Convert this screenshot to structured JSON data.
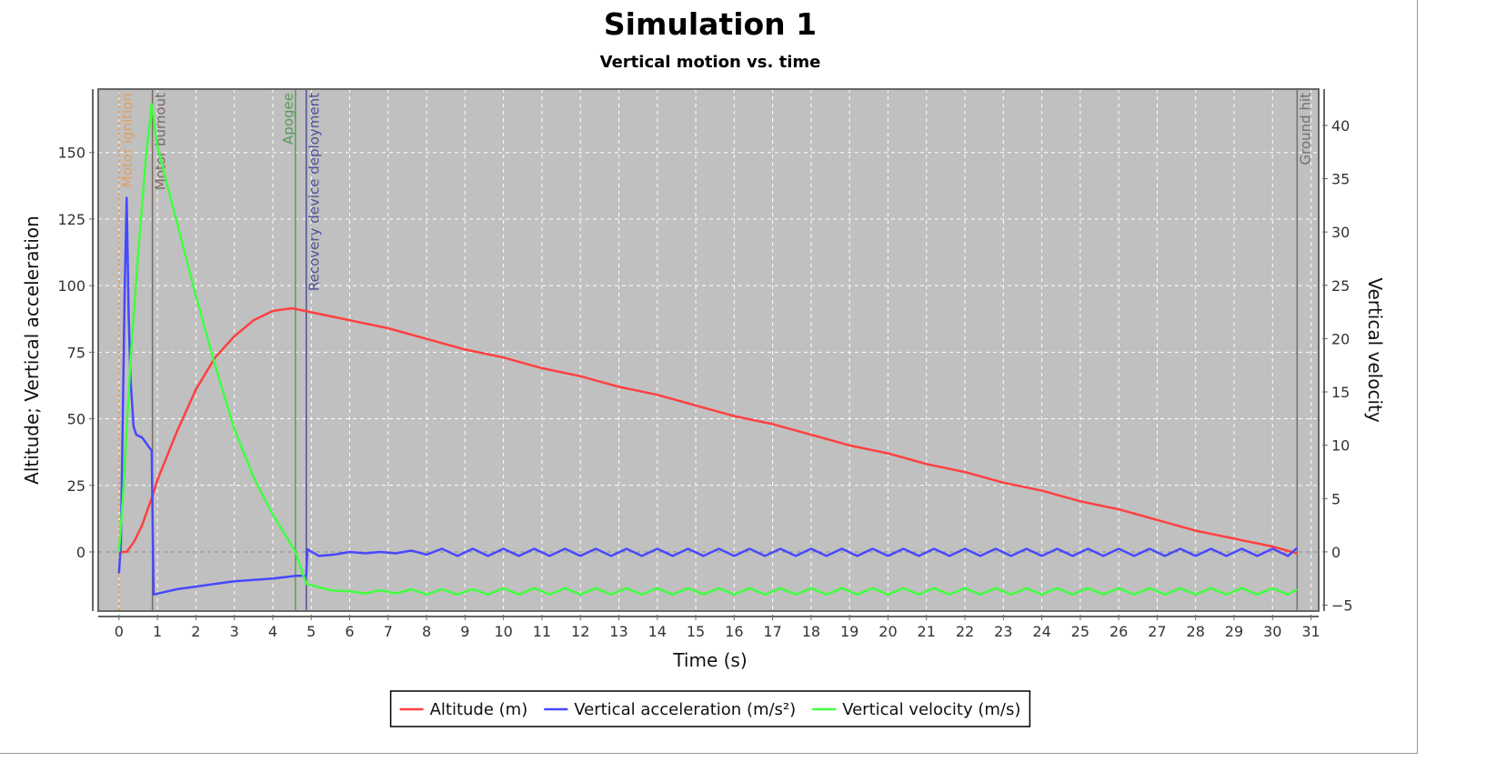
{
  "chart_data": {
    "type": "line",
    "title": "Simulation 1",
    "subtitle": "Vertical motion vs. time",
    "xlabel": "Time (s)",
    "ylabel_left": "Altitude; Vertical acceleration",
    "ylabel_right": "Vertical velocity",
    "xlim": [
      -0.54,
      31.2
    ],
    "ylim_left": [
      -22.2,
      173.8
    ],
    "ylim_right": [
      -5.55,
      43.4
    ],
    "x_ticks": [
      0,
      1,
      2,
      3,
      4,
      5,
      6,
      7,
      8,
      9,
      10,
      11,
      12,
      13,
      14,
      15,
      16,
      17,
      18,
      19,
      20,
      21,
      22,
      23,
      24,
      25,
      26,
      27,
      28,
      29,
      30,
      31
    ],
    "y_left_ticks": [
      0,
      25,
      50,
      75,
      100,
      125,
      150
    ],
    "y_right_ticks": [
      -5,
      0,
      5,
      10,
      15,
      20,
      25,
      30,
      35,
      40
    ],
    "grid": true,
    "background": "#c0c0c0",
    "legend_position": "bottom",
    "series": [
      {
        "name": "Altitude (m)",
        "axis": "left",
        "color": "#ff4040",
        "points": [
          [
            0,
            0
          ],
          [
            0.2,
            0
          ],
          [
            0.4,
            4
          ],
          [
            0.6,
            10
          ],
          [
            0.87,
            21
          ],
          [
            1,
            27
          ],
          [
            1.5,
            45
          ],
          [
            2,
            61
          ],
          [
            2.5,
            73
          ],
          [
            3,
            81
          ],
          [
            3.5,
            87
          ],
          [
            4,
            90.5
          ],
          [
            4.5,
            91.5
          ],
          [
            5,
            90
          ],
          [
            6,
            87
          ],
          [
            7,
            84
          ],
          [
            8,
            80
          ],
          [
            9,
            76
          ],
          [
            10,
            73
          ],
          [
            11,
            69
          ],
          [
            12,
            66
          ],
          [
            13,
            62
          ],
          [
            14,
            59
          ],
          [
            15,
            55
          ],
          [
            16,
            51
          ],
          [
            17,
            48
          ],
          [
            18,
            44
          ],
          [
            19,
            40
          ],
          [
            20,
            37
          ],
          [
            21,
            33
          ],
          [
            22,
            30
          ],
          [
            23,
            26
          ],
          [
            24,
            23
          ],
          [
            25,
            19
          ],
          [
            26,
            16
          ],
          [
            27,
            12
          ],
          [
            28,
            8
          ],
          [
            29,
            5
          ],
          [
            30,
            2
          ],
          [
            30.64,
            -0.5
          ]
        ]
      },
      {
        "name": "Vertical acceleration (m/s²)",
        "axis": "left",
        "color": "#4848ff",
        "points": [
          [
            0,
            -8
          ],
          [
            0.05,
            3
          ],
          [
            0.15,
            100
          ],
          [
            0.2,
            133
          ],
          [
            0.25,
            90
          ],
          [
            0.3,
            65
          ],
          [
            0.38,
            47
          ],
          [
            0.45,
            44
          ],
          [
            0.6,
            43
          ],
          [
            0.75,
            40
          ],
          [
            0.85,
            38
          ],
          [
            0.9,
            -16
          ],
          [
            1.5,
            -14
          ],
          [
            2,
            -13
          ],
          [
            2.5,
            -12
          ],
          [
            3,
            -11
          ],
          [
            4,
            -10
          ],
          [
            4.6,
            -9
          ],
          [
            4.87,
            -9
          ],
          [
            4.9,
            1
          ],
          [
            5.2,
            -1.5
          ],
          [
            5.6,
            -1
          ],
          [
            6.0,
            0
          ],
          [
            6.4,
            -0.5
          ],
          [
            6.8,
            0
          ],
          [
            7.2,
            -0.5
          ],
          [
            7.6,
            0.5
          ],
          [
            8.0,
            -1
          ],
          [
            8.4,
            1.2
          ],
          [
            8.8,
            -1.5
          ],
          [
            9.2,
            1.2
          ],
          [
            9.6,
            -1.5
          ],
          [
            10.0,
            1.2
          ],
          [
            10.4,
            -1.5
          ],
          [
            10.8,
            1.2
          ],
          [
            11.2,
            -1.5
          ],
          [
            11.6,
            1.2
          ],
          [
            12.0,
            -1.5
          ],
          [
            12.4,
            1.2
          ],
          [
            12.8,
            -1.5
          ],
          [
            13.2,
            1.2
          ],
          [
            13.6,
            -1.5
          ],
          [
            14.0,
            1.2
          ],
          [
            14.4,
            -1.5
          ],
          [
            14.8,
            1.2
          ],
          [
            15.2,
            -1.5
          ],
          [
            15.6,
            1.2
          ],
          [
            16.0,
            -1.5
          ],
          [
            16.4,
            1.2
          ],
          [
            16.8,
            -1.5
          ],
          [
            17.2,
            1.2
          ],
          [
            17.6,
            -1.5
          ],
          [
            18.0,
            1.2
          ],
          [
            18.4,
            -1.5
          ],
          [
            18.8,
            1.2
          ],
          [
            19.2,
            -1.5
          ],
          [
            19.6,
            1.2
          ],
          [
            20.0,
            -1.5
          ],
          [
            20.4,
            1.2
          ],
          [
            20.8,
            -1.5
          ],
          [
            21.2,
            1.2
          ],
          [
            21.6,
            -1.5
          ],
          [
            22.0,
            1.2
          ],
          [
            22.4,
            -1.5
          ],
          [
            22.8,
            1.2
          ],
          [
            23.2,
            -1.5
          ],
          [
            23.6,
            1.2
          ],
          [
            24.0,
            -1.5
          ],
          [
            24.4,
            1.2
          ],
          [
            24.8,
            -1.5
          ],
          [
            25.2,
            1.2
          ],
          [
            25.6,
            -1.5
          ],
          [
            26.0,
            1.2
          ],
          [
            26.4,
            -1.5
          ],
          [
            26.8,
            1.2
          ],
          [
            27.2,
            -1.5
          ],
          [
            27.6,
            1.2
          ],
          [
            28.0,
            -1.5
          ],
          [
            28.4,
            1.2
          ],
          [
            28.8,
            -1.5
          ],
          [
            29.2,
            1.2
          ],
          [
            29.6,
            -1.5
          ],
          [
            30.0,
            1.2
          ],
          [
            30.4,
            -1.5
          ],
          [
            30.64,
            1.5
          ]
        ]
      },
      {
        "name": "Vertical velocity (m/s)",
        "axis": "right",
        "color": "#40ff40",
        "points": [
          [
            0,
            0
          ],
          [
            0.1,
            5
          ],
          [
            0.3,
            18
          ],
          [
            0.5,
            28
          ],
          [
            0.7,
            37
          ],
          [
            0.85,
            42
          ],
          [
            1,
            38
          ],
          [
            1.5,
            31
          ],
          [
            2,
            24
          ],
          [
            2.5,
            17.5
          ],
          [
            3,
            11.5
          ],
          [
            3.5,
            7
          ],
          [
            4,
            3.5
          ],
          [
            4.59,
            0
          ],
          [
            4.87,
            -3
          ],
          [
            5.5,
            -3.6
          ],
          [
            6,
            -3.7
          ],
          [
            6.4,
            -3.9
          ],
          [
            6.8,
            -3.6
          ],
          [
            7.2,
            -3.9
          ],
          [
            7.6,
            -3.5
          ],
          [
            8.0,
            -4.0
          ],
          [
            8.4,
            -3.5
          ],
          [
            8.8,
            -4.0
          ],
          [
            9.2,
            -3.5
          ],
          [
            9.6,
            -4.0
          ],
          [
            10.0,
            -3.4
          ],
          [
            10.4,
            -4.0
          ],
          [
            10.8,
            -3.4
          ],
          [
            11.2,
            -4.0
          ],
          [
            11.6,
            -3.4
          ],
          [
            12.0,
            -4.0
          ],
          [
            12.4,
            -3.4
          ],
          [
            12.8,
            -4.0
          ],
          [
            13.2,
            -3.4
          ],
          [
            13.6,
            -4.0
          ],
          [
            14.0,
            -3.4
          ],
          [
            14.4,
            -4.0
          ],
          [
            14.8,
            -3.4
          ],
          [
            15.2,
            -4.0
          ],
          [
            15.6,
            -3.4
          ],
          [
            16.0,
            -4.0
          ],
          [
            16.4,
            -3.4
          ],
          [
            16.8,
            -4.0
          ],
          [
            17.2,
            -3.4
          ],
          [
            17.6,
            -4.0
          ],
          [
            18.0,
            -3.4
          ],
          [
            18.4,
            -4.0
          ],
          [
            18.8,
            -3.4
          ],
          [
            19.2,
            -4.0
          ],
          [
            19.6,
            -3.4
          ],
          [
            20.0,
            -4.0
          ],
          [
            20.4,
            -3.4
          ],
          [
            20.8,
            -4.0
          ],
          [
            21.2,
            -3.4
          ],
          [
            21.6,
            -4.0
          ],
          [
            22.0,
            -3.4
          ],
          [
            22.4,
            -4.0
          ],
          [
            22.8,
            -3.4
          ],
          [
            23.2,
            -4.0
          ],
          [
            23.6,
            -3.4
          ],
          [
            24.0,
            -4.0
          ],
          [
            24.4,
            -3.4
          ],
          [
            24.8,
            -4.0
          ],
          [
            25.2,
            -3.4
          ],
          [
            25.6,
            -4.0
          ],
          [
            26.0,
            -3.4
          ],
          [
            26.4,
            -4.0
          ],
          [
            26.8,
            -3.4
          ],
          [
            27.2,
            -4.0
          ],
          [
            27.6,
            -3.4
          ],
          [
            28.0,
            -4.0
          ],
          [
            28.4,
            -3.4
          ],
          [
            28.8,
            -4.0
          ],
          [
            29.2,
            -3.4
          ],
          [
            29.6,
            -4.0
          ],
          [
            30.0,
            -3.4
          ],
          [
            30.4,
            -4.0
          ],
          [
            30.64,
            -3.5
          ]
        ]
      }
    ],
    "events": [
      {
        "label": "Motor ignition",
        "time": 0,
        "color": "#e0a060",
        "dashed": true
      },
      {
        "label": "Motor burnout",
        "time": 0.87,
        "color": "#7a6a62",
        "dashed": false
      },
      {
        "label": "Apogee",
        "time": 4.59,
        "color": "#5a9a5a",
        "dashed": false
      },
      {
        "label": "Recovery device deployment",
        "time": 4.87,
        "color": "#50509a",
        "dashed": false
      },
      {
        "label": "Ground hit",
        "time": 30.64,
        "color": "#707070",
        "dashed": false
      }
    ]
  }
}
